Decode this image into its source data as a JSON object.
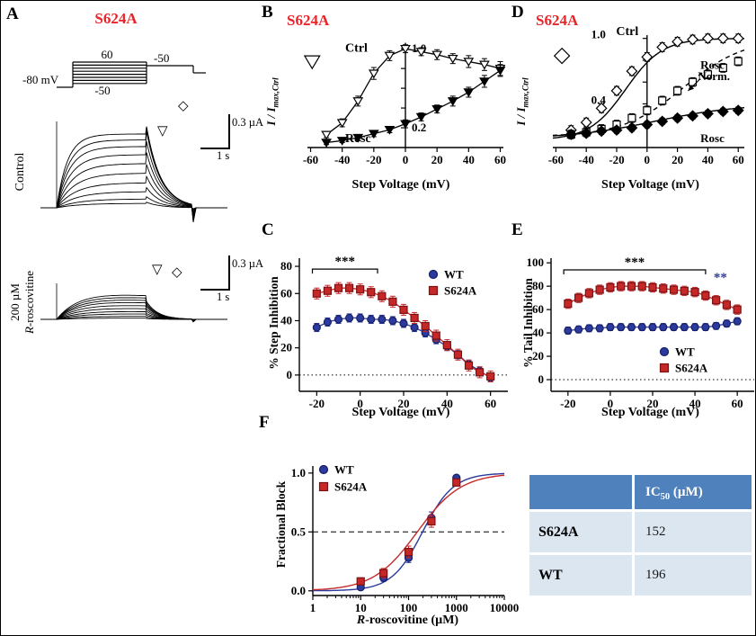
{
  "figure": {
    "panels": {
      "a": "A",
      "b": "B",
      "c": "C",
      "d": "D",
      "e": "E",
      "f": "F"
    }
  },
  "colors": {
    "mutant_title_red": "#e8252a",
    "wt_blue": "#2b3a9c",
    "s624a_red": "#c62828",
    "table_header_blue": "#4f81bd",
    "table_row_blue": "#dce6f1"
  },
  "panelA": {
    "title": "S624A",
    "protocol": {
      "top_step": "60",
      "tail_level": "-50",
      "bottom_step": "-50",
      "holding": "-80 mV"
    },
    "control_label": "Control",
    "rosc_line1": "200 µM",
    "rosc_line2_italic": "R",
    "rosc_line2_rest": "-roscovitine",
    "scale_current": "0.3 µA",
    "scale_time": "1 s",
    "symbols": {
      "step_marker": "▽",
      "tail_marker": "◇"
    },
    "control_amplitudes": [
      0.06,
      0.12,
      0.22,
      0.34,
      0.47,
      0.6,
      0.72,
      0.83,
      0.92,
      1.0
    ],
    "rosc_amplitudes": [
      0.02,
      0.05,
      0.09,
      0.13,
      0.18,
      0.23,
      0.28,
      0.32,
      0.36,
      0.4
    ]
  },
  "table": {
    "header_label": "IC",
    "header_sub": "50",
    "header_rest": " (µM)",
    "rows": [
      {
        "label": "S624A",
        "value": "152"
      },
      {
        "label": "WT",
        "value": "196"
      }
    ]
  },
  "chart_data": [
    {
      "panel": "B",
      "type": "line",
      "title": "S624A",
      "xlabel": "Step Voltage (mV)",
      "ylabel": "I / Imax,Ctrl",
      "ylabel_main": "I / I",
      "ylabel_sub": "max,Ctrl",
      "xlim": [
        -62,
        62
      ],
      "ylim": [
        0,
        1.12
      ],
      "xticks": [
        -60,
        -40,
        -20,
        0,
        20,
        40,
        60
      ],
      "yaxis_at_x": 0,
      "yaxis_top": 1.06,
      "yticks": [
        0.2,
        0.4,
        0.6,
        0.8,
        1.0
      ],
      "ytick_labels": [
        {
          "v": 1.0,
          "t": "1.0"
        },
        {
          "v": 0.2,
          "t": "0.2"
        }
      ],
      "ytick_side": "right",
      "series": [
        {
          "name": "Ctrl",
          "marker": "tri-down",
          "fill": "open",
          "color": "#000000",
          "line": "solid",
          "x": [
            -50,
            -40,
            -30,
            -20,
            -10,
            0,
            10,
            20,
            30,
            40,
            50,
            60
          ],
          "y": [
            0.13,
            0.25,
            0.47,
            0.75,
            0.93,
            1.0,
            0.97,
            0.94,
            0.9,
            0.87,
            0.84,
            0.8
          ],
          "err": [
            0.03,
            0.04,
            0.05,
            0.06,
            0.05,
            0.04,
            0.04,
            0.05,
            0.05,
            0.06,
            0.06,
            0.07
          ]
        },
        {
          "name": "Rosc",
          "marker": "tri-down",
          "fill": "filled",
          "color": "#000000",
          "line": "solid",
          "x": [
            -50,
            -40,
            -30,
            -20,
            -10,
            0,
            10,
            20,
            30,
            40,
            50,
            60
          ],
          "y": [
            0.05,
            0.07,
            0.1,
            0.14,
            0.18,
            0.24,
            0.31,
            0.39,
            0.47,
            0.56,
            0.67,
            0.78
          ],
          "err": [
            0.02,
            0.02,
            0.03,
            0.03,
            0.03,
            0.04,
            0.04,
            0.04,
            0.05,
            0.05,
            0.06,
            0.06
          ]
        }
      ],
      "annotations": [
        {
          "type": "marker",
          "marker": "tri-down",
          "fill": "open",
          "x": -59,
          "y": 0.87,
          "size": 7
        },
        {
          "text": "Ctrl",
          "x": -31,
          "y": 0.97,
          "size": 14
        },
        {
          "text": "Rosc",
          "x": -30,
          "y": 0.055,
          "size": 14
        }
      ]
    },
    {
      "panel": "C",
      "type": "line",
      "xlabel": "Step Voltage (mV)",
      "ylabel": "% Step Inhibition",
      "xlim": [
        -28,
        68
      ],
      "ylim": [
        -12,
        86
      ],
      "xticks": [
        -20,
        0,
        20,
        40,
        60
      ],
      "yaxis_at_x": "left",
      "yticks": [
        0,
        20,
        40,
        60,
        80
      ],
      "ytick_labels": [
        {
          "v": 0,
          "t": "0"
        },
        {
          "v": 20,
          "t": "20"
        },
        {
          "v": 40,
          "t": "40"
        },
        {
          "v": 60,
          "t": "60"
        },
        {
          "v": 80,
          "t": "80"
        }
      ],
      "ytick_side": "left",
      "ref_lines": [
        {
          "y": 0,
          "style": "dotted"
        }
      ],
      "series": [
        {
          "name": "WT",
          "marker": "circle",
          "fill": "filled",
          "color": "#2b3a9c",
          "edge": "#161f66",
          "line": "solid",
          "x": [
            -20,
            -15,
            -10,
            -5,
            0,
            5,
            10,
            15,
            20,
            25,
            30,
            35,
            40,
            45,
            50,
            55,
            60
          ],
          "y": [
            35,
            39,
            41,
            42,
            42,
            41,
            41,
            40,
            38,
            35,
            31,
            26,
            21,
            15,
            8,
            3,
            -2
          ],
          "err": 3
        },
        {
          "name": "S624A",
          "marker": "square",
          "fill": "filled",
          "color": "#c62828",
          "edge": "#7c1113",
          "line": "solid",
          "x": [
            -20,
            -15,
            -10,
            -5,
            0,
            5,
            10,
            15,
            20,
            25,
            30,
            35,
            40,
            45,
            50,
            55,
            60
          ],
          "y": [
            60,
            62,
            64,
            64,
            63,
            61,
            58,
            54,
            48,
            42,
            36,
            29,
            22,
            15,
            7,
            2,
            -1
          ],
          "err": 4
        }
      ],
      "annotations": [
        {
          "type": "sig",
          "x1": -22,
          "x2": 8,
          "y": 78,
          "text": "***"
        }
      ]
    },
    {
      "panel": "D",
      "type": "line",
      "title": "S624A",
      "xlabel": "Step Voltage (mV)",
      "ylabel": "I / Imax,Ctrl",
      "ylabel_main": "I / I",
      "ylabel_sub": "max,Ctrl",
      "xlim": [
        -62,
        64
      ],
      "ylim": [
        0,
        1.08
      ],
      "xticks": [
        -60,
        -40,
        -20,
        0,
        20,
        40,
        60
      ],
      "yaxis_at_x": 0,
      "yaxis_top": 1.03,
      "yticks": [
        0.2,
        0.4,
        0.6,
        0.8,
        1.0
      ],
      "ytick_labels": [],
      "series": [
        {
          "name": "Ctrl",
          "marker": "diamond",
          "fill": "open",
          "color": "#000000",
          "line": "none",
          "fit": {
            "type": "boltzmann",
            "v50": -14,
            "k": 12,
            "ymin": 0.07,
            "ymax": 1.0,
            "style": "solid"
          },
          "x": [
            -50,
            -40,
            -30,
            -20,
            -10,
            0,
            10,
            20,
            30,
            40,
            50,
            60
          ],
          "y": [
            0.16,
            0.23,
            0.36,
            0.52,
            0.7,
            0.83,
            0.92,
            0.97,
            0.99,
            1.0,
            1.0,
            1.0
          ],
          "err": 0.04
        },
        {
          "name": "Rosc Norm.",
          "marker": "square",
          "fill": "open",
          "color": "#000000",
          "line": "none",
          "fit": {
            "type": "boltzmann",
            "v50": 24,
            "k": 20,
            "ymin": 0.1,
            "ymax": 1.0,
            "style": "dashed"
          },
          "x": [
            -50,
            -40,
            -30,
            -20,
            -10,
            0,
            10,
            20,
            30,
            40,
            50,
            60
          ],
          "y": [
            0.12,
            0.14,
            0.17,
            0.21,
            0.27,
            0.34,
            0.43,
            0.52,
            0.6,
            0.67,
            0.73,
            0.79
          ],
          "err": 0.04
        },
        {
          "name": "Rosc",
          "marker": "diamond",
          "fill": "filled",
          "color": "#000000",
          "line": "none",
          "fit": {
            "type": "boltzmann",
            "v50": 5,
            "k": 28,
            "ymin": 0.08,
            "ymax": 0.4,
            "style": "solid"
          },
          "x": [
            -50,
            -40,
            -30,
            -20,
            -10,
            0,
            10,
            20,
            30,
            40,
            50,
            60
          ],
          "y": [
            0.12,
            0.13,
            0.15,
            0.16,
            0.18,
            0.21,
            0.24,
            0.27,
            0.29,
            0.31,
            0.33,
            0.34
          ],
          "err": 0.03
        }
      ],
      "annotations": [
        {
          "type": "marker",
          "marker": "diamond",
          "fill": "open",
          "x": -56,
          "y": 0.84,
          "size": 6
        },
        {
          "text": "1.0",
          "x": -32,
          "y": 1.0,
          "size": 13
        },
        {
          "text": "0.4",
          "x": -32,
          "y": 0.4,
          "size": 13
        },
        {
          "text": "Ctrl",
          "x": -13,
          "y": 1.03,
          "size": 14
        },
        {
          "text": "Rosc",
          "x": 43,
          "y": 0.72,
          "size": 13
        },
        {
          "text": "Norm.",
          "x": 44,
          "y": 0.62,
          "size": 13
        },
        {
          "type": "arrow",
          "x1": 35,
          "y1": 0.63,
          "x2": 27,
          "y2": 0.52
        },
        {
          "text": "Rosc",
          "x": 43,
          "y": 0.05,
          "size": 13
        }
      ]
    },
    {
      "panel": "E",
      "type": "line",
      "xlabel": "Step Voltage (mV)",
      "ylabel": "% Tail Inhibition",
      "xlim": [
        -28,
        68
      ],
      "ylim": [
        -10,
        104
      ],
      "xticks": [
        -20,
        0,
        20,
        40,
        60
      ],
      "yaxis_at_x": "left",
      "yticks": [
        0,
        20,
        40,
        60,
        80,
        100
      ],
      "ytick_labels": [
        {
          "v": 0,
          "t": "0"
        },
        {
          "v": 20,
          "t": "20"
        },
        {
          "v": 40,
          "t": "40"
        },
        {
          "v": 60,
          "t": "60"
        },
        {
          "v": 80,
          "t": "80"
        },
        {
          "v": 100,
          "t": "100"
        }
      ],
      "ytick_side": "left",
      "ref_lines": [
        {
          "y": 0,
          "style": "dotted"
        }
      ],
      "series": [
        {
          "name": "WT",
          "marker": "circle",
          "fill": "filled",
          "color": "#2b3a9c",
          "edge": "#161f66",
          "line": "solid",
          "x": [
            -20,
            -15,
            -10,
            -5,
            0,
            5,
            10,
            15,
            20,
            25,
            30,
            35,
            40,
            45,
            50,
            55,
            60
          ],
          "y": [
            42,
            43,
            44,
            44,
            45,
            45,
            45,
            45,
            45,
            45,
            45,
            45,
            45,
            45,
            46,
            48,
            50
          ],
          "err": 3
        },
        {
          "name": "S624A",
          "marker": "square",
          "fill": "filled",
          "color": "#c62828",
          "edge": "#7c1113",
          "line": "solid",
          "x": [
            -20,
            -15,
            -10,
            -5,
            0,
            5,
            10,
            15,
            20,
            25,
            30,
            35,
            40,
            45,
            50,
            55,
            60
          ],
          "y": [
            65,
            70,
            74,
            77,
            79,
            80,
            80,
            80,
            79,
            78,
            77,
            76,
            75,
            72,
            68,
            64,
            60
          ],
          "err": 4
        }
      ],
      "annotations": [
        {
          "type": "sig",
          "x1": -22,
          "x2": 45,
          "y": 94,
          "text": "***"
        },
        {
          "text": "**",
          "x": 52,
          "y": 84,
          "size": 15,
          "color": "#2b3a9c"
        }
      ]
    },
    {
      "panel": "F",
      "type": "line",
      "xscale": "log",
      "xlabel": "R-roscovitine (µM)",
      "xlabel_italic": "R",
      "xlabel_rest": "-roscovitine (µM)",
      "ylabel": "Fractional Block",
      "xlim": [
        1,
        10000
      ],
      "ylim": [
        -0.04,
        1.06
      ],
      "xticks": [
        1,
        10,
        100,
        1000,
        10000
      ],
      "yaxis_at_x": "left",
      "yticks": [
        0,
        0.5,
        1.0
      ],
      "ytick_labels": [
        {
          "v": 0,
          "t": "0.0"
        },
        {
          "v": 0.5,
          "t": "0.5"
        },
        {
          "v": 1,
          "t": "1.0"
        }
      ],
      "ytick_side": "left",
      "ref_lines": [
        {
          "y": 0.5,
          "style": "dashed"
        }
      ],
      "series": [
        {
          "name": "WT",
          "marker": "circle",
          "fill": "filled",
          "color": "#2b3a9c",
          "edge": "#161f66",
          "line": "none",
          "fit": {
            "type": "hill",
            "ic50": 196,
            "h": 1.35,
            "style": "solid"
          },
          "x": [
            10,
            30,
            100,
            300,
            1000
          ],
          "y": [
            0.03,
            0.11,
            0.28,
            0.62,
            0.96
          ],
          "err": [
            0.02,
            0.03,
            0.04,
            0.05,
            0.02
          ]
        },
        {
          "name": "S624A",
          "marker": "square",
          "fill": "filled",
          "color": "#c62828",
          "edge": "#7c1113",
          "line": "none",
          "fit": {
            "type": "hill",
            "ic50": 152,
            "h": 0.95,
            "style": "solid"
          },
          "x": [
            10,
            30,
            100,
            300,
            1000
          ],
          "y": [
            0.08,
            0.15,
            0.33,
            0.59,
            0.92
          ],
          "err": [
            0.03,
            0.04,
            0.05,
            0.05,
            0.03
          ]
        }
      ],
      "annotations": []
    }
  ]
}
